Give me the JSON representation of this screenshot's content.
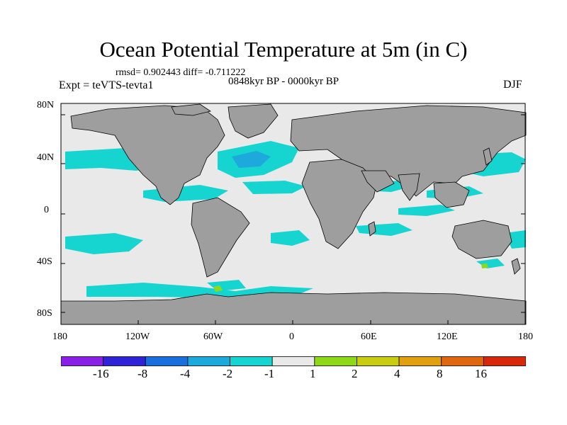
{
  "title": "Ocean Potential Temperature at 5m (in C)",
  "stats_text": "rmsd= 0.902443 diff= -0.711222",
  "period_text": "0848kyr BP - 0000kyr BP",
  "experiment_text": "Expt = teVTS-tevta1",
  "season_text": "DJF",
  "y_axis_labels": [
    "80N",
    "40N",
    "0",
    "40S",
    "80S"
  ],
  "x_axis_labels": [
    "180",
    "120W",
    "60W",
    "0",
    "60E",
    "120E",
    "180"
  ],
  "colorbar": {
    "labels": [
      "-16",
      "-8",
      "-4",
      "-2",
      "-1",
      "1",
      "2",
      "4",
      "8",
      "16"
    ],
    "colors": [
      "#8a1fe6",
      "#2f23d8",
      "#1a6fde",
      "#1ea9dc",
      "#16d4d0",
      "#e9e9e9",
      "#8ed81a",
      "#c9cc10",
      "#e0a00f",
      "#e0660f",
      "#d8280a"
    ]
  },
  "map_colors": {
    "land": "#9e9e9e",
    "ocean_neutral": "#e9e9e9",
    "cyan": "#16d4d0",
    "light_blue": "#1ea9dc",
    "blue": "#1a6fde",
    "green": "#8ed81a"
  }
}
